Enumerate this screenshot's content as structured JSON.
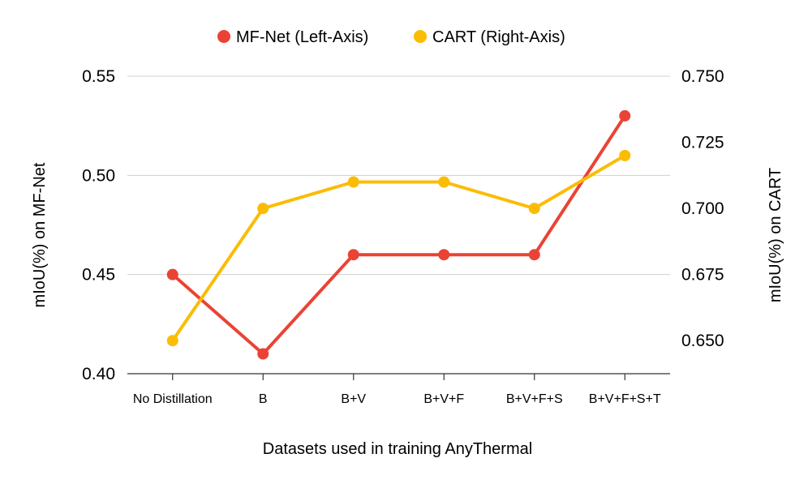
{
  "chart_data": {
    "type": "line",
    "categories": [
      "No Distillation",
      "B",
      "B+V",
      "B+V+F",
      "B+V+F+S",
      "B+V+F+S+T"
    ],
    "series": [
      {
        "name": "MF-Net (Left-Axis)",
        "axis": "left",
        "color": "#EA4335",
        "values": [
          0.45,
          0.41,
          0.46,
          0.46,
          0.46,
          0.53
        ]
      },
      {
        "name": "CART (Right-Axis)",
        "axis": "right",
        "color": "#FBBC04",
        "values": [
          0.65,
          0.7,
          0.71,
          0.71,
          0.7,
          0.72
        ]
      }
    ],
    "xlabel": "Datasets used in training AnyThermal",
    "ylabel_left": "mIoU(%) on MF-Net",
    "ylabel_right": "mIoU(%) on CART",
    "ylim_left": [
      0.4,
      0.55
    ],
    "yticks_left": [
      "0.40",
      "0.45",
      "0.50",
      "0.55"
    ],
    "ylim_right": [
      0.6375,
      0.75
    ],
    "yticks_right": [
      "0.650",
      "0.675",
      "0.700",
      "0.725",
      "0.750"
    ],
    "grid": true,
    "legend_position": "top-center"
  }
}
